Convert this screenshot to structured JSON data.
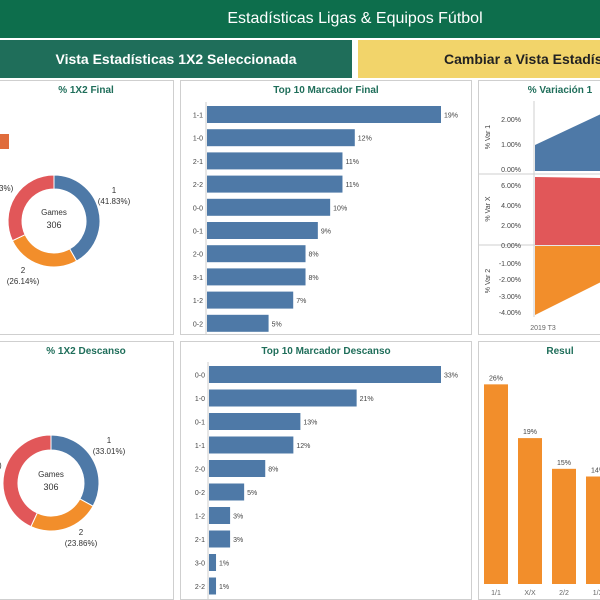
{
  "header": {
    "title": "Estadísticas Ligas & Equipos Fútbol"
  },
  "nav": {
    "active_label": "Vista Estadísticas 1X2 Seleccionada",
    "switch_label": "Cambiar a Vista Estadís"
  },
  "colors": {
    "header_bg": "#0d6e4c",
    "nav_active_bg": "#1f6e5a",
    "nav_switch_bg": "#f2d46a",
    "blue": "#4e79a7",
    "orange": "#f28e2b",
    "red": "#e15759",
    "title_green": "#1f6e5a"
  },
  "panels": {
    "final_1x2": {
      "title": "% 1X2 Final",
      "center_label": "Games",
      "center_value": "306",
      "labels": [
        {
          "key": "blue",
          "name": "1",
          "pct": "(41.83%)"
        },
        {
          "key": "orange",
          "name": "2",
          "pct": "(26.14%)"
        },
        {
          "key": "red",
          "name": "",
          "pct": "3%)"
        }
      ]
    },
    "top10_final": {
      "title": "Top 10 Marcador Final"
    },
    "variacion": {
      "title": "% Variación 1",
      "axis_1": [
        "2.00%",
        "1.00%",
        "0.00%"
      ],
      "axis_2": [
        "6.00%",
        "4.00%",
        "2.00%",
        "0.00%"
      ],
      "axis_3": [
        "-1.00%",
        "-2.00%",
        "-3.00%",
        "-4.00%"
      ],
      "label_1": "% Var 1",
      "label_2": "% Var X",
      "label_3": "% Var 2",
      "x_label": "2019 T3"
    },
    "descanso_1x2": {
      "title": "% 1X2 Descanso",
      "center_label": "Games",
      "center_value": "306",
      "labels": [
        {
          "key": "blue",
          "name": "1",
          "pct": "(33.01%)"
        },
        {
          "key": "orange",
          "name": "2",
          "pct": "(23.86%)"
        },
        {
          "key": "red",
          "name": "",
          "pct": ")"
        }
      ]
    },
    "top10_descanso": {
      "title": "Top 10 Marcador Descanso"
    },
    "resultados": {
      "title": "Resul"
    }
  },
  "chart_data": [
    {
      "type": "pie",
      "title": "% 1X2 Final",
      "categories": [
        "1",
        "2",
        "X"
      ],
      "values": [
        41.83,
        26.14,
        32.03
      ],
      "center_label": "Games",
      "center_value": "306"
    },
    {
      "type": "bar",
      "title": "Top 10 Marcador Final",
      "categories": [
        "1-1",
        "1-0",
        "2-1",
        "2-2",
        "0-0",
        "0-1",
        "2-0",
        "3-1",
        "1-2",
        "0-2"
      ],
      "values": [
        19,
        12,
        11,
        11,
        10,
        9,
        8,
        8,
        7,
        5
      ],
      "value_labels": [
        "19%",
        "12%",
        "11%",
        "11%",
        "10%",
        "9%",
        "8%",
        "8%",
        "7%",
        "5%"
      ],
      "orientation": "horizontal"
    },
    {
      "type": "area",
      "title": "% Variación 1",
      "series": [
        {
          "name": "% Var 1",
          "x": [
            "2019 T3"
          ],
          "values": [
            1.0
          ]
        },
        {
          "name": "% Var X",
          "x": [
            "2019 T3"
          ],
          "values": [
            3.5
          ]
        },
        {
          "name": "% Var 2",
          "x": [
            "2019 T3"
          ],
          "values": [
            -4.0
          ]
        }
      ]
    },
    {
      "type": "pie",
      "title": "% 1X2 Descanso",
      "categories": [
        "1",
        "2",
        "X"
      ],
      "values": [
        33.01,
        23.86,
        43.13
      ],
      "center_label": "Games",
      "center_value": "306"
    },
    {
      "type": "bar",
      "title": "Top 10 Marcador Descanso",
      "categories": [
        "0-0",
        "1-0",
        "0-1",
        "1-1",
        "2-0",
        "0-2",
        "1-2",
        "2-1",
        "3-0",
        "2-2"
      ],
      "values": [
        33,
        21,
        13,
        12,
        8,
        5,
        3,
        3,
        1,
        1
      ],
      "value_labels": [
        "33%",
        "21%",
        "13%",
        "12%",
        "8%",
        "5%",
        "3%",
        "3%",
        "1%",
        "1%"
      ],
      "orientation": "horizontal"
    },
    {
      "type": "bar",
      "title": "Resul",
      "categories": [
        "1/1",
        "X/X",
        "2/2",
        "1/X"
      ],
      "values": [
        26,
        19,
        15,
        14
      ],
      "value_labels": [
        "26%",
        "19%",
        "15%",
        "14%"
      ],
      "ylim": [
        0,
        28
      ]
    }
  ]
}
